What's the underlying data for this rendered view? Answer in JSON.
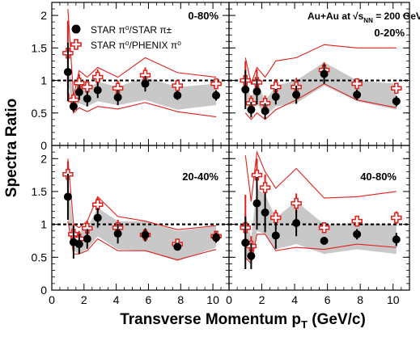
{
  "figure": {
    "ylabel": "Spectra Ratio",
    "xlabel_main": "Transverse Momentum p",
    "xlabel_sub": "T",
    "xlabel_unit": " (GeV/c)",
    "collision_label": "Au+Au at",
    "energy_label": "s",
    "energy_sub": "NN",
    "energy_value": " = 200 GeV",
    "legend": [
      {
        "key": "star",
        "text": "STAR π⁰/STAR π±"
      },
      {
        "key": "phenix",
        "text": "STAR π⁰/PHENIX π⁰"
      }
    ]
  },
  "colors": {
    "star_marker": "#000000",
    "phenix_marker": "#e0201b",
    "syst_band": "#c8c8c8",
    "envelope": "#e0201b",
    "reference_line": "#000000"
  },
  "chart_data": [
    {
      "type": "scatter",
      "panel": "top-left",
      "centrality": "0-80%",
      "xlim": [
        0,
        11
      ],
      "ylim": [
        0,
        2.2
      ],
      "xticks": [
        0,
        2,
        4,
        6,
        8,
        10
      ],
      "yticks": [
        0,
        0.5,
        1,
        1.5,
        2
      ],
      "reference_y": 1,
      "series": [
        {
          "name": "STAR π⁰/STAR π±",
          "marker": "filled-circle",
          "x": [
            1.0,
            1.35,
            1.7,
            2.2,
            2.85,
            4.1,
            5.8,
            7.8,
            10.2
          ],
          "y": [
            1.13,
            0.6,
            0.82,
            0.72,
            0.85,
            0.74,
            0.95,
            0.77,
            0.77
          ],
          "err": [
            0.45,
            0.08,
            0.12,
            0.12,
            0.12,
            0.12,
            0.12,
            0.07,
            0.08
          ]
        },
        {
          "name": "STAR π⁰/PHENIX π⁰",
          "marker": "open-cross",
          "x": [
            1.0,
            1.35,
            1.7,
            2.2,
            2.85,
            4.1,
            5.8,
            7.8,
            10.2
          ],
          "y": [
            1.42,
            0.7,
            0.96,
            0.9,
            1.05,
            0.88,
            1.08,
            0.92,
            0.95
          ],
          "err": [
            0.5,
            0.1,
            0.14,
            0.1,
            0.12,
            0.12,
            0.12,
            0.08,
            0.08
          ]
        }
      ],
      "band": {
        "x": [
          1.0,
          1.35,
          1.7,
          2.2,
          2.85,
          4.1,
          5.8,
          7.8,
          10.2
        ],
        "low": [
          0.95,
          0.55,
          0.65,
          0.6,
          0.68,
          0.62,
          0.7,
          0.55,
          0.62
        ],
        "high": [
          1.3,
          0.78,
          0.95,
          0.85,
          0.98,
          0.9,
          1.05,
          0.9,
          0.95
        ]
      },
      "envelope": {
        "x": [
          1.0,
          1.35,
          1.7,
          2.2,
          2.85,
          4.1,
          5.8,
          7.8,
          10.2
        ],
        "low": [
          0.85,
          0.5,
          0.58,
          0.52,
          0.6,
          0.56,
          0.66,
          0.52,
          0.44
        ],
        "high": [
          2.1,
          0.75,
          1.15,
          1.05,
          1.2,
          1.05,
          1.35,
          1.12,
          1.05
        ]
      }
    },
    {
      "type": "scatter",
      "panel": "top-right",
      "centrality": "0-20%",
      "xlim": [
        0,
        11
      ],
      "ylim": [
        0,
        2.2
      ],
      "xticks": [
        0,
        2,
        4,
        6,
        8,
        10
      ],
      "yticks": [
        0,
        0.5,
        1,
        1.5,
        2
      ],
      "reference_y": 1,
      "series": [
        {
          "name": "STAR π⁰/STAR π±",
          "marker": "filled-circle",
          "x": [
            1.0,
            1.35,
            1.7,
            2.2,
            2.85,
            4.1,
            5.8,
            7.8,
            10.2
          ],
          "y": [
            0.86,
            0.55,
            0.83,
            0.53,
            0.75,
            0.78,
            1.1,
            0.78,
            0.68
          ],
          "err": [
            0.3,
            0.12,
            0.2,
            0.12,
            0.12,
            0.14,
            0.15,
            0.08,
            0.08
          ]
        },
        {
          "name": "STAR π⁰/PHENIX π⁰",
          "marker": "open-cross",
          "x": [
            1.0,
            1.35,
            1.7,
            2.2,
            2.85,
            4.1,
            5.8,
            7.8,
            10.2
          ],
          "y": [
            1.0,
            0.65,
            0.97,
            0.65,
            0.9,
            0.9,
            1.16,
            0.95,
            0.88
          ],
          "err": [
            0.3,
            0.12,
            0.2,
            0.12,
            0.12,
            0.14,
            0.12,
            0.08,
            0.08
          ]
        }
      ],
      "band": {
        "x": [
          1.0,
          1.35,
          1.7,
          2.2,
          2.85,
          4.1,
          5.8,
          7.8,
          10.2
        ],
        "low": [
          0.7,
          0.45,
          0.65,
          0.45,
          0.6,
          0.65,
          0.92,
          0.68,
          0.55
        ],
        "high": [
          1.05,
          0.7,
          1.0,
          0.68,
          0.92,
          1.0,
          1.28,
          1.0,
          0.95
        ]
      },
      "envelope": {
        "x": [
          1.0,
          1.35,
          1.7,
          2.2,
          2.85,
          4.1,
          5.8,
          7.8,
          10.2
        ],
        "low": [
          0.5,
          0.4,
          0.5,
          0.4,
          0.55,
          0.7,
          0.95,
          0.7,
          0.58
        ],
        "high": [
          1.35,
          0.95,
          1.2,
          1.05,
          1.3,
          1.35,
          1.55,
          1.5,
          1.5
        ]
      }
    },
    {
      "type": "scatter",
      "panel": "bottom-left",
      "centrality": "20-40%",
      "xlim": [
        0,
        11
      ],
      "ylim": [
        0,
        2.2
      ],
      "xticks": [
        0,
        2,
        4,
        6,
        8,
        10
      ],
      "yticks": [
        0,
        0.5,
        1,
        1.5,
        2
      ],
      "reference_y": 1,
      "series": [
        {
          "name": "STAR π⁰/STAR π±",
          "marker": "filled-circle",
          "x": [
            1.0,
            1.35,
            1.7,
            2.2,
            2.85,
            4.1,
            5.8,
            7.8,
            10.2
          ],
          "y": [
            1.42,
            0.73,
            0.7,
            0.78,
            1.1,
            0.86,
            0.84,
            0.66,
            0.8
          ],
          "err": [
            0.35,
            0.25,
            0.15,
            0.15,
            0.15,
            0.15,
            0.1,
            0.05,
            0.08
          ]
        },
        {
          "name": "STAR π⁰/PHENIX π⁰",
          "marker": "open-cross",
          "x": [
            1.0,
            1.35,
            1.7,
            2.2,
            2.85,
            4.1,
            5.8,
            7.8,
            10.2
          ],
          "y": [
            1.76,
            0.85,
            0.78,
            0.94,
            1.3,
            0.95,
            0.84,
            0.7,
            0.82
          ],
          "err": [
            0.2,
            0.15,
            0.12,
            0.12,
            0.12,
            0.12,
            0.06,
            0.05,
            0.06
          ]
        }
      ],
      "band": {
        "x": [
          1.0,
          1.35,
          1.7,
          2.2,
          2.85,
          4.1,
          5.8,
          7.8,
          10.2
        ],
        "low": [
          1.1,
          0.6,
          0.55,
          0.62,
          0.82,
          0.62,
          0.6,
          0.44,
          0.65
        ],
        "high": [
          1.7,
          0.9,
          0.88,
          0.95,
          1.25,
          1.05,
          1.05,
          0.9,
          0.98
        ]
      },
      "envelope": {
        "x": [
          1.0,
          1.35,
          1.7,
          2.2,
          2.85,
          4.1,
          5.8,
          7.8,
          10.2
        ],
        "low": [
          1.05,
          0.55,
          0.55,
          0.6,
          0.78,
          0.6,
          0.6,
          0.46,
          0.62
        ],
        "high": [
          2.0,
          1.0,
          0.95,
          1.05,
          1.42,
          1.12,
          1.05,
          0.92,
          0.98
        ]
      }
    },
    {
      "type": "scatter",
      "panel": "bottom-right",
      "centrality": "40-80%",
      "xlim": [
        0,
        11
      ],
      "ylim": [
        0,
        2.2
      ],
      "xticks": [
        0,
        2,
        4,
        6,
        8,
        10
      ],
      "yticks": [
        0,
        0.5,
        1,
        1.5,
        2
      ],
      "reference_y": 1,
      "series": [
        {
          "name": "STAR π⁰/STAR π±",
          "marker": "filled-circle",
          "x": [
            1.0,
            1.35,
            1.7,
            2.2,
            2.85,
            4.1,
            5.8,
            7.8,
            10.2
          ],
          "y": [
            0.72,
            0.52,
            1.32,
            1.18,
            0.83,
            1.02,
            0.75,
            0.85,
            0.77
          ],
          "err": [
            0.4,
            0.2,
            0.4,
            0.3,
            0.2,
            0.2,
            0.06,
            0.08,
            0.1
          ]
        },
        {
          "name": "STAR π⁰/PHENIX π⁰",
          "marker": "open-cross",
          "x": [
            1.0,
            1.35,
            1.7,
            2.2,
            2.85,
            4.1,
            5.8,
            7.8,
            10.2
          ],
          "y": [
            0.95,
            0.67,
            1.75,
            1.56,
            1.1,
            1.32,
            0.95,
            1.05,
            1.1
          ],
          "err": [
            0.5,
            0.15,
            0.25,
            0.2,
            0.12,
            0.15,
            0.05,
            0.06,
            0.1
          ]
        }
      ],
      "band": {
        "x": [
          1.0,
          1.35,
          1.7,
          2.2,
          2.85,
          4.1,
          5.8,
          7.8,
          10.2
        ],
        "low": [
          0.55,
          0.38,
          0.9,
          0.85,
          0.62,
          0.7,
          0.55,
          0.62,
          0.55
        ],
        "high": [
          1.15,
          0.8,
          1.55,
          1.45,
          1.1,
          1.35,
          1.0,
          1.02,
          1.0
        ]
      },
      "envelope": {
        "x": [
          1.0,
          1.35,
          1.7,
          2.2,
          2.85,
          4.1,
          5.8,
          7.8,
          10.2
        ],
        "low": [
          0.5,
          0.4,
          0.85,
          0.85,
          0.6,
          0.65,
          0.62,
          0.7,
          0.65
        ],
        "high": [
          2.05,
          1.35,
          2.1,
          1.8,
          1.55,
          1.85,
          1.4,
          1.42,
          1.5
        ]
      }
    }
  ]
}
